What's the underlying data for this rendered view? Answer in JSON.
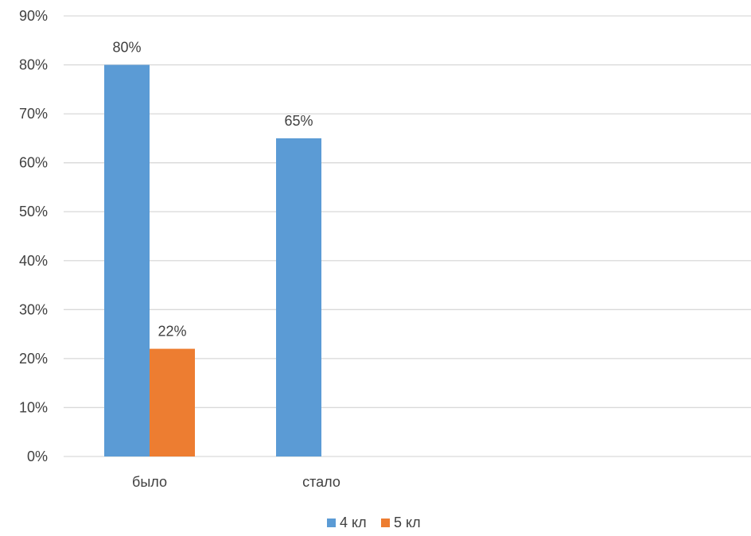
{
  "chart_data": {
    "type": "bar",
    "categories": [
      "было",
      "стало",
      "",
      ""
    ],
    "series": [
      {
        "name": "4 кл",
        "color": "#5B9BD5",
        "values": [
          80,
          65,
          null,
          null
        ],
        "labels": [
          "80%",
          "65%",
          "",
          ""
        ]
      },
      {
        "name": "5 кл",
        "color": "#ED7D31",
        "values": [
          22,
          null,
          null,
          null
        ],
        "labels": [
          "22%",
          "",
          "",
          ""
        ]
      }
    ],
    "ylim": [
      0,
      90
    ],
    "y_ticks": [
      0,
      10,
      20,
      30,
      40,
      50,
      60,
      70,
      80,
      90
    ],
    "y_tick_labels": [
      "0%",
      "10%",
      "20%",
      "30%",
      "40%",
      "50%",
      "60%",
      "70%",
      "80%",
      "90%"
    ],
    "grid": true,
    "gridline_color": "#D9D9D9",
    "legend_position": "bottom"
  }
}
